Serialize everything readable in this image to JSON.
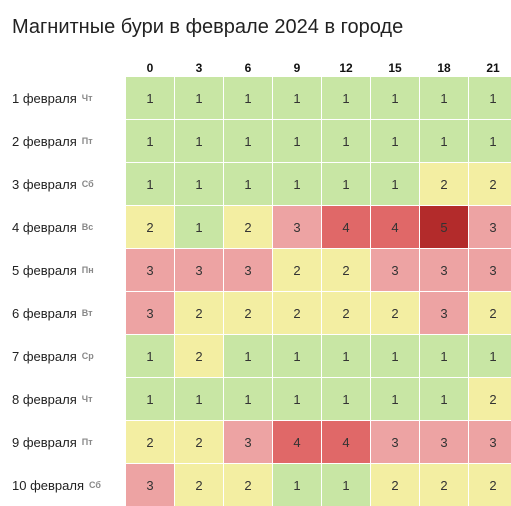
{
  "title": "Магнитные бури в феврале 2024 в городе",
  "hours": [
    "0",
    "3",
    "6",
    "9",
    "12",
    "15",
    "18",
    "21"
  ],
  "level_colors": {
    "1": "#c8e6a4",
    "2": "#f3eea2",
    "3": "#eda3a3",
    "4": "#e06868",
    "5": "#b32b2b"
  },
  "rows": [
    {
      "date": "1 февраля",
      "dow": "Чт",
      "values": [
        1,
        1,
        1,
        1,
        1,
        1,
        1,
        1
      ]
    },
    {
      "date": "2 февраля",
      "dow": "Пт",
      "values": [
        1,
        1,
        1,
        1,
        1,
        1,
        1,
        1
      ]
    },
    {
      "date": "3 февраля",
      "dow": "Сб",
      "values": [
        1,
        1,
        1,
        1,
        1,
        1,
        2,
        2
      ]
    },
    {
      "date": "4 февраля",
      "dow": "Вс",
      "values": [
        2,
        1,
        2,
        3,
        4,
        4,
        5,
        3
      ]
    },
    {
      "date": "5 февраля",
      "dow": "Пн",
      "values": [
        3,
        3,
        3,
        2,
        2,
        3,
        3,
        3
      ]
    },
    {
      "date": "6 февраля",
      "dow": "Вт",
      "values": [
        3,
        2,
        2,
        2,
        2,
        2,
        3,
        2
      ]
    },
    {
      "date": "7 февраля",
      "dow": "Ср",
      "values": [
        1,
        2,
        1,
        1,
        1,
        1,
        1,
        1
      ]
    },
    {
      "date": "8 февраля",
      "dow": "Чт",
      "values": [
        1,
        1,
        1,
        1,
        1,
        1,
        1,
        2
      ]
    },
    {
      "date": "9 февраля",
      "dow": "Пт",
      "values": [
        2,
        2,
        3,
        4,
        4,
        3,
        3,
        3
      ]
    },
    {
      "date": "10 февраля",
      "dow": "Сб",
      "values": [
        3,
        2,
        2,
        1,
        1,
        2,
        2,
        2
      ]
    }
  ]
}
